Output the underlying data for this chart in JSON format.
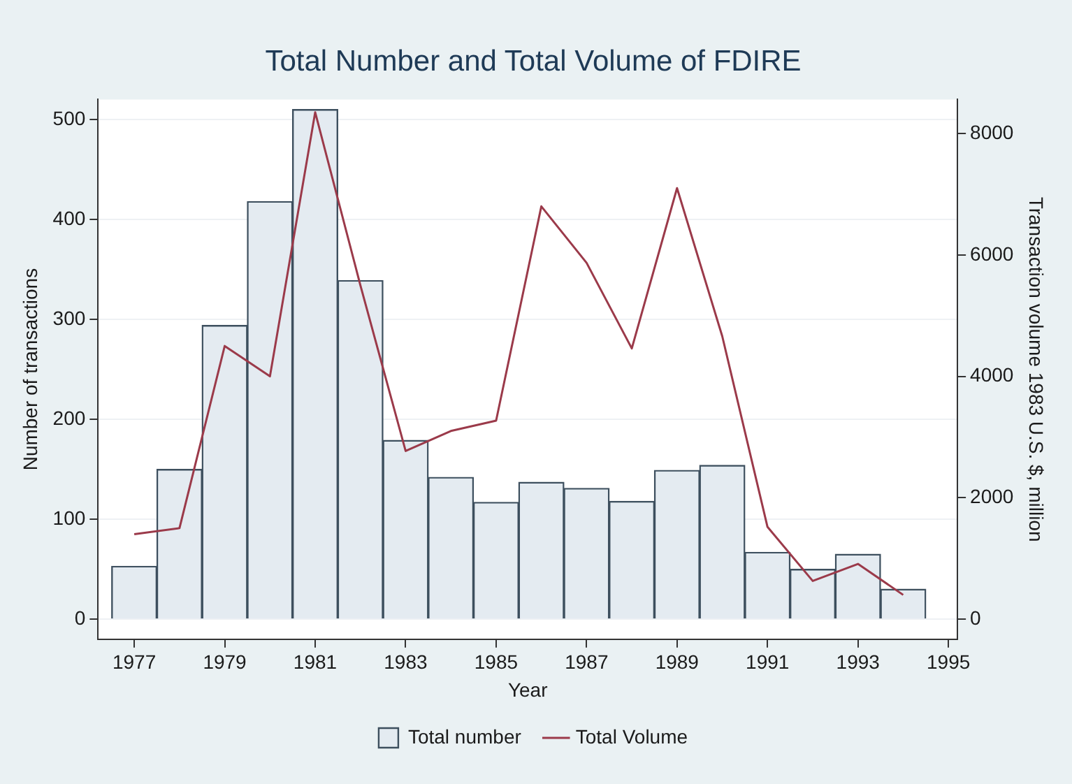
{
  "chart_data": {
    "type": "bar",
    "title": "Total Number and Total Volume of FDIRE",
    "xlabel": "Year",
    "ylabel": "Number of transactions",
    "y2label": "Transaction volume 1983 U.S. $, million",
    "x": [
      1977,
      1978,
      1979,
      1980,
      1981,
      1982,
      1983,
      1984,
      1985,
      1986,
      1987,
      1988,
      1989,
      1990,
      1991,
      1992,
      1993,
      1994
    ],
    "series": [
      {
        "name": "Total number",
        "color": "#e4ebf1",
        "values": [
          53,
          150,
          294,
          418,
          510,
          339,
          179,
          142,
          117,
          137,
          131,
          118,
          149,
          154,
          67,
          50,
          65,
          30
        ]
      },
      {
        "name": "Total Volume",
        "type": "line",
        "axis": "y2",
        "color": "#9b3a4a",
        "values": [
          1400,
          1500,
          4500,
          4000,
          8350,
          5500,
          2770,
          3100,
          3270,
          6800,
          5870,
          4460,
          7100,
          4660,
          1520,
          630,
          910,
          400
        ]
      }
    ],
    "xlim": [
      1976.2,
      1995.2
    ],
    "xticks": [
      1977,
      1979,
      1981,
      1983,
      1985,
      1987,
      1989,
      1991,
      1993,
      1995
    ],
    "ylim": [
      -20,
      520
    ],
    "yticks": [
      0,
      100,
      200,
      300,
      400,
      500
    ],
    "y2lim": [
      -330,
      8560
    ],
    "y2ticks": [
      0,
      2000,
      4000,
      6000,
      8000
    ],
    "grid": "y",
    "legend": "bottom",
    "marker": "none"
  }
}
